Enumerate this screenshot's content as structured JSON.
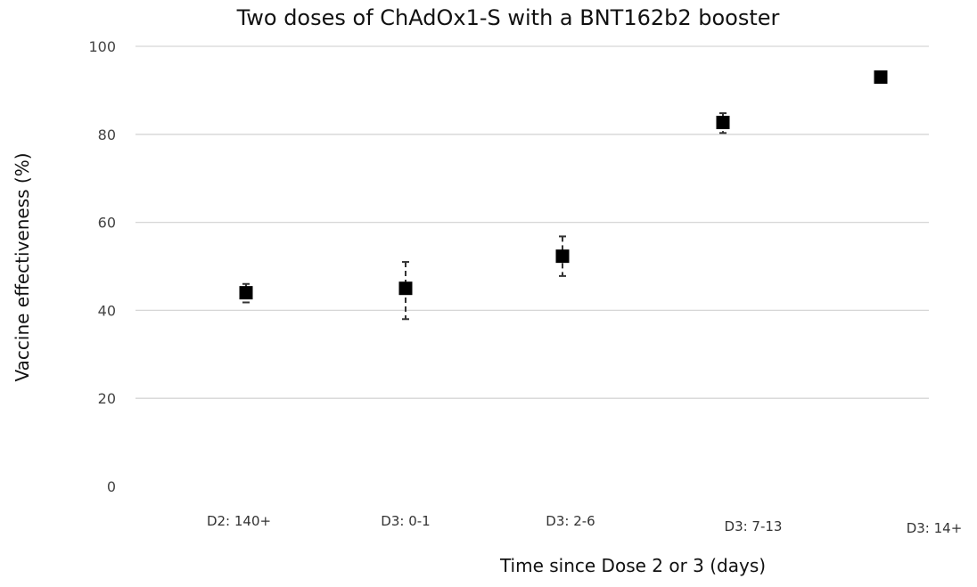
{
  "chart_data": {
    "type": "scatter",
    "title": "Two doses of ChAdOx1-S with a BNT162b2 booster",
    "xlabel": "Time since Dose 2 or 3 (days)",
    "ylabel": "Vaccine effectiveness (%)",
    "ylim": [
      0,
      100
    ],
    "yticks": [
      0,
      20,
      40,
      60,
      80,
      100
    ],
    "grid": true,
    "legend": "none",
    "categories": [
      "D2: 140+",
      "D3: 0-1",
      "D3: 2-6",
      "D3: 7-13",
      "D3: 14+"
    ],
    "values": [
      44.0,
      45.0,
      52.3,
      82.7,
      93.0
    ],
    "lower": [
      41.8,
      38.0,
      47.8,
      80.3,
      92.3
    ],
    "upper": [
      46.0,
      51.0,
      56.8,
      84.8,
      93.6
    ],
    "marker_color": "#000000"
  }
}
